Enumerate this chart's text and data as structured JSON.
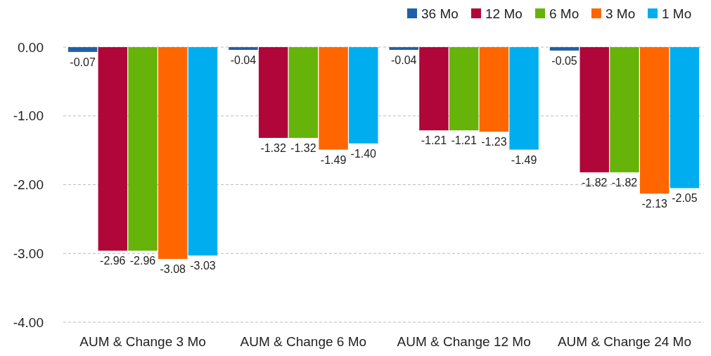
{
  "chart_data": {
    "type": "bar",
    "categories": [
      "AUM & Change 3 Mo",
      "AUM & Change 6 Mo",
      "AUM & Change 12 Mo",
      "AUM & Change 24 Mo"
    ],
    "series": [
      {
        "name": "36 Mo",
        "color": "#1f5fa8",
        "values": [
          -0.07,
          -0.04,
          -0.04,
          -0.05
        ],
        "value_labels": [
          "-0.07",
          "-0.04",
          "-0.04",
          "-0.05"
        ]
      },
      {
        "name": "12 Mo",
        "color": "#b0063a",
        "values": [
          -2.96,
          -1.32,
          -1.21,
          -1.82
        ],
        "value_labels": [
          "-2.96",
          "-1.32",
          "-1.21",
          "-1.82"
        ]
      },
      {
        "name": "6 Mo",
        "color": "#66b30a",
        "values": [
          -2.96,
          -1.32,
          -1.21,
          -1.82
        ],
        "value_labels": [
          "-2.96",
          "-1.32",
          "-1.21",
          "-1.82"
        ]
      },
      {
        "name": "3 Mo",
        "color": "#ff6600",
        "values": [
          -3.08,
          -1.49,
          -1.23,
          -2.13
        ],
        "value_labels": [
          "-3.08",
          "-1.49",
          "-1.23",
          "-2.13"
        ]
      },
      {
        "name": "1 Mo",
        "color": "#00aeef",
        "values": [
          -3.03,
          -1.4,
          -1.49,
          -2.05
        ],
        "value_labels": [
          "-3.03",
          "-1.40",
          "-1.49",
          "-2.05"
        ]
      }
    ],
    "ylim": [
      -4,
      0
    ],
    "yticks": [
      {
        "value": 0,
        "label": "0.00"
      },
      {
        "value": -1,
        "label": "-1.00"
      },
      {
        "value": -2,
        "label": "-2.00"
      },
      {
        "value": -3,
        "label": "-3.00"
      },
      {
        "value": -4,
        "label": "-4.00"
      }
    ],
    "grid": "y",
    "legend": "top right"
  }
}
